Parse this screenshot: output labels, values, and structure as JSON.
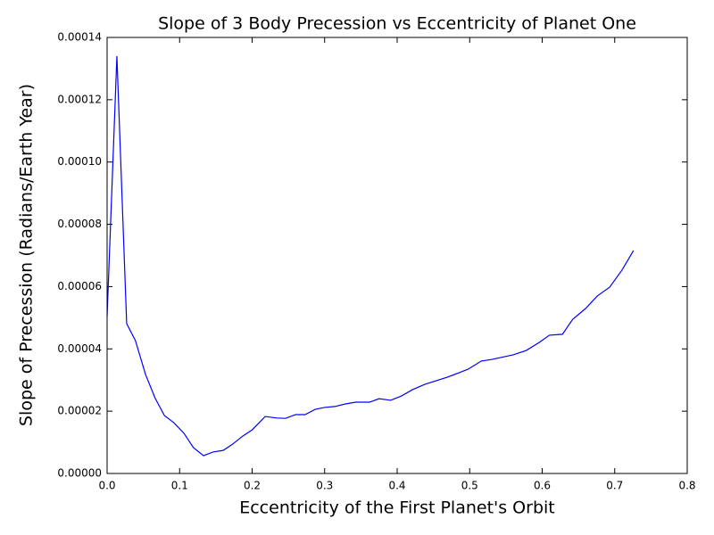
{
  "chart_data": {
    "type": "line",
    "title": "Slope of 3 Body Precession vs Eccentricity of Planet One",
    "x_label": "Eccentricity of the First Planet's Orbit",
    "y_label": "Slope of Precession (Radians/Earth Year)",
    "x": [
      0,
      0.0135,
      0.027,
      0.039,
      0.053,
      0.066,
      0.079,
      0.092,
      0.106,
      0.119,
      0.133,
      0.146,
      0.16,
      0.173,
      0.187,
      0.2,
      0.218,
      0.234,
      0.246,
      0.26,
      0.273,
      0.287,
      0.3,
      0.314,
      0.328,
      0.343,
      0.362,
      0.375,
      0.391,
      0.406,
      0.421,
      0.438,
      0.469,
      0.486,
      0.498,
      0.516,
      0.53,
      0.56,
      0.578,
      0.596,
      0.61,
      0.628,
      0.642,
      0.66,
      0.676,
      0.693,
      0.71,
      0.726
    ],
    "series": [
      {
        "color": "#0000ff",
        "values": [
          5.04e-05,
          0.000134,
          4.81e-05,
          4.27e-05,
          3.18e-05,
          2.43e-05,
          1.86e-05,
          1.63e-05,
          1.29e-05,
          8.3e-06,
          5.7e-06,
          6.9e-06,
          7.4e-06,
          9.4e-06,
          1.2e-05,
          1.4e-05,
          1.83e-05,
          1.78e-05,
          1.77e-05,
          1.89e-05,
          1.89e-05,
          2.06e-05,
          2.12e-05,
          2.15e-05,
          2.23e-05,
          2.29e-05,
          2.29e-05,
          2.4e-05,
          2.35e-05,
          2.49e-05,
          2.69e-05,
          2.86e-05,
          3.09e-05,
          3.24e-05,
          3.35e-05,
          3.61e-05,
          3.66e-05,
          3.81e-05,
          3.95e-05,
          4.21e-05,
          4.44e-05,
          4.47e-05,
          4.95e-05,
          5.3e-05,
          5.7e-05,
          5.98e-05,
          6.53e-05,
          7.16e-05
        ]
      }
    ],
    "xlim": [
      0,
      0.8
    ],
    "ylim": [
      0,
      0.00014
    ],
    "xticks": [
      {
        "value": 0,
        "label": "0.0"
      },
      {
        "value": 0.1,
        "label": "0.1"
      },
      {
        "value": 0.2,
        "label": "0.2"
      },
      {
        "value": 0.3,
        "label": "0.3"
      },
      {
        "value": 0.4,
        "label": "0.4"
      },
      {
        "value": 0.5,
        "label": "0.5"
      },
      {
        "value": 0.6,
        "label": "0.6"
      },
      {
        "value": 0.7,
        "label": "0.7"
      },
      {
        "value": 0.8,
        "label": "0.8"
      }
    ],
    "yticks": [
      {
        "value": 0,
        "label": "0.00000"
      },
      {
        "value": 2e-05,
        "label": "0.00002"
      },
      {
        "value": 4e-05,
        "label": "0.00004"
      },
      {
        "value": 6e-05,
        "label": "0.00006"
      },
      {
        "value": 8e-05,
        "label": "0.00008"
      },
      {
        "value": 0.0001,
        "label": "0.00010"
      },
      {
        "value": 0.00012,
        "label": "0.00012"
      },
      {
        "value": 0.00014,
        "label": "0.00014"
      }
    ]
  }
}
